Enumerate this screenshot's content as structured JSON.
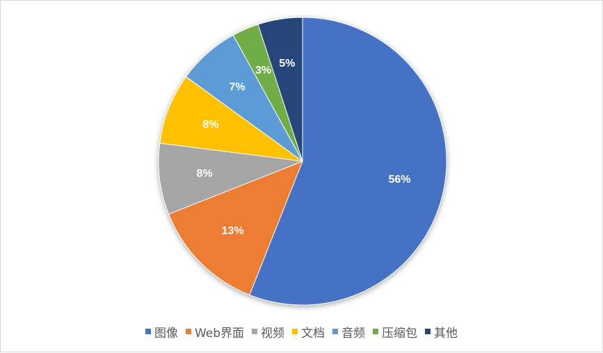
{
  "chart_data": {
    "type": "pie",
    "title": "",
    "legend_position": "bottom",
    "start_angle_deg": 0,
    "direction": "clockwise",
    "slices": [
      {
        "name": "图像",
        "value": 56,
        "label": "56%",
        "color": "#4472C4"
      },
      {
        "name": "Web界面",
        "value": 13,
        "label": "13%",
        "color": "#ED7D31"
      },
      {
        "name": "视频",
        "value": 8,
        "label": "8%",
        "color": "#A5A5A5"
      },
      {
        "name": "文档",
        "value": 8,
        "label": "8%",
        "color": "#FFC000"
      },
      {
        "name": "音频",
        "value": 7,
        "label": "7%",
        "color": "#5B9BD5"
      },
      {
        "name": "压缩包",
        "value": 3,
        "label": "3%",
        "color": "#70AD47"
      },
      {
        "name": "其他",
        "value": 5,
        "label": "5%",
        "color": "#264478"
      }
    ]
  }
}
